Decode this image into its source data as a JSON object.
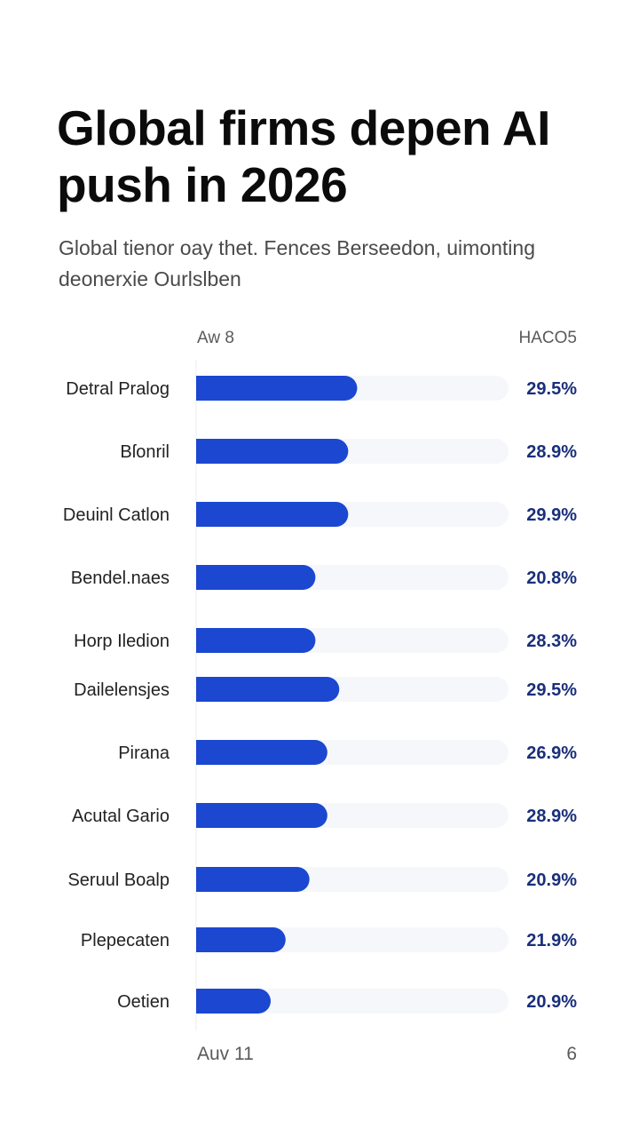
{
  "title": "Global firms depen AI push in 2026",
  "subtitle": "Global tienor oay thet. Fences Berseedon, uimonting deonerxie Ourlslben",
  "column_headers": {
    "left": "Aw 8",
    "right": "HACO5"
  },
  "footer": {
    "left": "Auv 11",
    "right": "6"
  },
  "colors": {
    "bar": "#1b47d1",
    "value_text": "#1a2f7a",
    "label_text": "#222222"
  },
  "chart_data": {
    "type": "bar",
    "orientation": "horizontal",
    "categories": [
      "Detral Pralog",
      "Bſonril",
      "Deuinl Catlon",
      "Bendel.naes",
      "Horp Iledion",
      "Dailelensjes",
      "Pirana",
      "Acutal Gario",
      "Seruul Boalp",
      "Plepecaten",
      "Oetien"
    ],
    "values": [
      29.5,
      28.9,
      29.9,
      20.8,
      28.3,
      29.5,
      26.9,
      28.9,
      20.9,
      21.9,
      20.9
    ],
    "value_labels": [
      "29.5%",
      "28.9%",
      "29.9%",
      "20.8%",
      "28.3%",
      "29.5%",
      "26.9%",
      "28.9%",
      "20.9%",
      "21.9%",
      "20.9%"
    ],
    "bar_lengths": [
      0.54,
      0.51,
      0.51,
      0.4,
      0.4,
      0.48,
      0.44,
      0.44,
      0.38,
      0.3,
      0.25
    ],
    "grid": false,
    "legend": "none"
  }
}
